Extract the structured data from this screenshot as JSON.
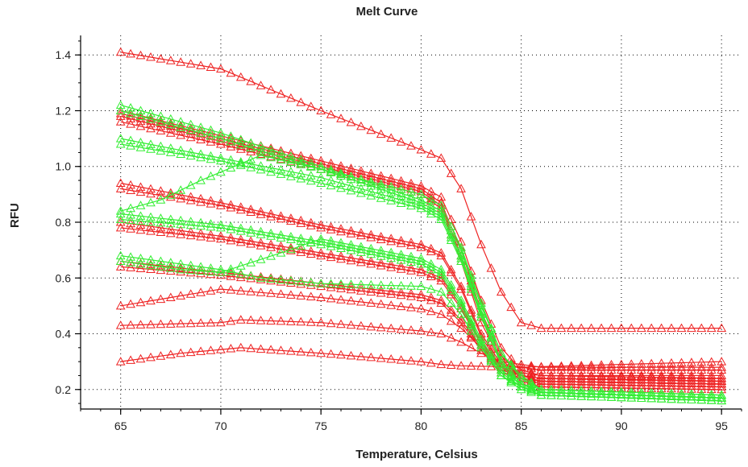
{
  "chart_data": {
    "type": "line",
    "title": "Melt Curve",
    "xlabel": "Temperature, Celsius",
    "ylabel": "RFU",
    "xlim": [
      63,
      96
    ],
    "ylim": [
      0.13,
      1.47
    ],
    "x_ticks": [
      65,
      70,
      75,
      80,
      85,
      90,
      95
    ],
    "y_ticks": [
      0.2,
      0.4,
      0.6,
      0.8,
      1.0,
      1.2,
      1.4
    ],
    "y_tick_labels": [
      "0.2",
      "0.4",
      "0.6",
      "0.8",
      "1.0",
      "1.2",
      "1.4"
    ],
    "grid": true,
    "marker": "open-triangle",
    "x_step": 0.5,
    "colors": {
      "red": "#ee2222",
      "green": "#33ee33",
      "axis": "#000000",
      "grid": "#000000"
    },
    "series": [
      {
        "color": "red",
        "values": {
          "65": 1.41,
          "70": 1.35,
          "75": 1.2,
          "80": 1.06,
          "81": 1.03,
          "82": 0.92,
          "83": 0.72,
          "84": 0.55,
          "85": 0.44,
          "86": 0.42,
          "95": 0.42
        }
      },
      {
        "color": "red",
        "values": {
          "65": 1.2,
          "70": 1.11,
          "75": 1.02,
          "80": 0.93,
          "81": 0.89,
          "82": 0.73,
          "83": 0.52,
          "84": 0.35,
          "85": 0.27,
          "86": 0.25,
          "95": 0.24
        }
      },
      {
        "color": "red",
        "values": {
          "65": 1.19,
          "70": 1.1,
          "75": 1.01,
          "80": 0.92,
          "81": 0.87,
          "82": 0.7,
          "83": 0.48,
          "84": 0.32,
          "85": 0.25,
          "86": 0.23,
          "95": 0.22
        }
      },
      {
        "color": "red",
        "values": {
          "65": 1.18,
          "70": 1.09,
          "75": 1.0,
          "80": 0.91,
          "81": 0.86,
          "82": 0.68,
          "83": 0.46,
          "84": 0.31,
          "85": 0.24,
          "86": 0.22,
          "95": 0.21
        }
      },
      {
        "color": "red",
        "values": {
          "65": 1.16,
          "70": 1.08,
          "75": 0.99,
          "80": 0.9,
          "81": 0.85,
          "82": 0.66,
          "83": 0.44,
          "84": 0.3,
          "85": 0.23,
          "86": 0.21,
          "95": 0.2
        }
      },
      {
        "color": "red",
        "values": {
          "65": 0.94,
          "70": 0.87,
          "75": 0.79,
          "80": 0.72,
          "81": 0.69,
          "82": 0.57,
          "83": 0.4,
          "84": 0.29,
          "85": 0.26,
          "86": 0.25,
          "95": 0.25
        }
      },
      {
        "color": "red",
        "values": {
          "65": 0.92,
          "70": 0.86,
          "75": 0.78,
          "80": 0.71,
          "81": 0.68,
          "82": 0.56,
          "83": 0.39,
          "84": 0.28,
          "85": 0.25,
          "86": 0.24,
          "95": 0.23
        }
      },
      {
        "color": "red",
        "values": {
          "65": 0.8,
          "70": 0.75,
          "75": 0.69,
          "80": 0.63,
          "81": 0.6,
          "82": 0.5,
          "83": 0.37,
          "84": 0.28,
          "85": 0.26,
          "86": 0.25,
          "95": 0.24
        }
      },
      {
        "color": "red",
        "values": {
          "65": 0.78,
          "70": 0.74,
          "75": 0.68,
          "80": 0.62,
          "81": 0.59,
          "82": 0.49,
          "83": 0.36,
          "84": 0.27,
          "85": 0.25,
          "86": 0.24,
          "95": 0.23
        }
      },
      {
        "color": "red",
        "values": {
          "65": 0.66,
          "70": 0.62,
          "75": 0.58,
          "80": 0.54,
          "81": 0.52,
          "82": 0.45,
          "83": 0.35,
          "84": 0.27,
          "85": 0.25,
          "86": 0.24,
          "95": 0.23
        }
      },
      {
        "color": "red",
        "values": {
          "65": 0.64,
          "70": 0.61,
          "75": 0.57,
          "80": 0.53,
          "81": 0.51,
          "82": 0.44,
          "83": 0.34,
          "84": 0.26,
          "85": 0.24,
          "86": 0.23,
          "95": 0.22
        }
      },
      {
        "color": "red",
        "values": {
          "65": 0.5,
          "70": 0.56,
          "75": 0.53,
          "80": 0.49,
          "81": 0.47,
          "82": 0.42,
          "83": 0.35,
          "84": 0.29,
          "85": 0.28,
          "86": 0.27,
          "95": 0.27
        }
      },
      {
        "color": "red",
        "values": {
          "65": 0.43,
          "70": 0.44,
          "71": 0.45,
          "75": 0.44,
          "80": 0.41,
          "81": 0.4,
          "82": 0.37,
          "83": 0.33,
          "84": 0.3,
          "85": 0.29,
          "86": 0.28,
          "95": 0.28
        }
      },
      {
        "color": "red",
        "values": {
          "65": 0.3,
          "68": 0.33,
          "71": 0.35,
          "75": 0.33,
          "80": 0.3,
          "81": 0.29,
          "82": 0.285,
          "85": 0.28,
          "95": 0.3
        }
      },
      {
        "color": "green",
        "values": {
          "65": 1.22,
          "70": 1.12,
          "75": 1.0,
          "80": 0.88,
          "81": 0.84,
          "82": 0.7,
          "83": 0.5,
          "84": 0.33,
          "85": 0.25,
          "86": 0.2,
          "95": 0.18
        }
      },
      {
        "color": "green",
        "values": {
          "65": 1.2,
          "70": 1.1,
          "75": 0.99,
          "80": 0.87,
          "81": 0.83,
          "82": 0.68,
          "83": 0.48,
          "84": 0.3,
          "85": 0.22,
          "86": 0.19,
          "95": 0.17
        }
      },
      {
        "color": "green",
        "values": {
          "65": 1.1,
          "70": 1.03,
          "75": 0.96,
          "80": 0.86,
          "81": 0.82,
          "82": 0.67,
          "83": 0.47,
          "84": 0.3,
          "85": 0.22,
          "86": 0.19,
          "95": 0.17
        }
      },
      {
        "color": "green",
        "values": {
          "65": 1.08,
          "70": 1.02,
          "75": 0.94,
          "80": 0.85,
          "81": 0.81,
          "82": 0.66,
          "83": 0.46,
          "84": 0.29,
          "85": 0.21,
          "86": 0.18,
          "95": 0.16
        }
      },
      {
        "color": "green",
        "values": {
          "65": 0.84,
          "67": 0.88,
          "69": 0.95,
          "71": 1.01,
          "72": 1.04,
          "75": 0.99,
          "80": 0.9,
          "81": 0.86,
          "82": 0.71,
          "83": 0.51,
          "84": 0.33,
          "85": 0.24,
          "86": 0.2,
          "95": 0.18
        }
      },
      {
        "color": "green",
        "values": {
          "65": 0.83,
          "70": 0.79,
          "75": 0.73,
          "80": 0.66,
          "81": 0.62,
          "82": 0.51,
          "83": 0.37,
          "84": 0.26,
          "85": 0.21,
          "86": 0.19,
          "95": 0.17
        }
      },
      {
        "color": "green",
        "values": {
          "65": 0.81,
          "70": 0.78,
          "75": 0.72,
          "80": 0.65,
          "81": 0.61,
          "82": 0.5,
          "83": 0.36,
          "84": 0.25,
          "85": 0.2,
          "86": 0.18,
          "95": 0.16
        }
      },
      {
        "color": "green",
        "values": {
          "65": 0.68,
          "70": 0.63,
          "72": 0.6,
          "75": 0.58,
          "80": 0.57,
          "81": 0.55,
          "82": 0.47,
          "83": 0.35,
          "84": 0.25,
          "85": 0.21,
          "86": 0.19,
          "95": 0.17
        }
      },
      {
        "color": "green",
        "values": {
          "65": 0.66,
          "68": 0.63,
          "70": 0.62,
          "73": 0.69,
          "75": 0.74,
          "80": 0.67,
          "81": 0.63,
          "82": 0.52,
          "83": 0.38,
          "84": 0.27,
          "85": 0.22,
          "86": 0.2,
          "95": 0.18
        }
      }
    ]
  }
}
